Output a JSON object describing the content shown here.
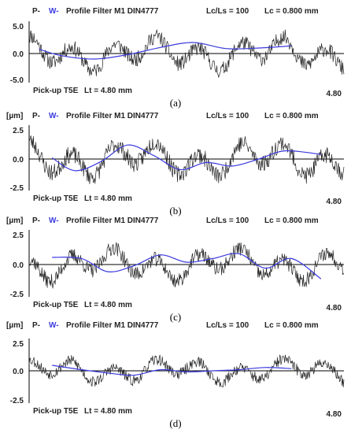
{
  "colors": {
    "profile": "#222222",
    "waviness": "#3a3adf",
    "axis": "#000000"
  },
  "panels": [
    {
      "caption": "(a)",
      "header": {
        "p": "P-",
        "w": "W-",
        "rest": "Profile  Filter  M1  DIN4777",
        "lcls": "Lc/Ls = 100",
        "lc": "Lc =  0.800  mm"
      },
      "pickup": "Pick-up  T5E",
      "lt": "Lt =  4.80  mm",
      "x_end_label": "4.80",
      "unit": "",
      "y_ticks": [
        "5.0",
        "0.0",
        "-5.0"
      ],
      "chart_data": {
        "type": "line",
        "x_range": [
          0,
          4.8
        ],
        "ylim": [
          -5.5,
          5.5
        ],
        "x_unit": "mm",
        "y_unit": "µm",
        "series": [
          {
            "role": "profile",
            "amplitude": 3.6,
            "seed": 11,
            "x_end": 4.8
          },
          {
            "role": "waviness",
            "x_start": 0.15,
            "x_end": 4.0,
            "x": [
              0.15,
              0.5,
              1.0,
              1.5,
              2.0,
              2.5,
              3.0,
              3.5,
              4.0
            ],
            "y": [
              0.8,
              -0.4,
              -1.0,
              -0.2,
              1.1,
              2.0,
              0.9,
              1.0,
              1.4
            ]
          }
        ]
      }
    },
    {
      "caption": "(b)",
      "header": {
        "p": "P-",
        "w": "W-",
        "rest": "Profile  Filter  M1  DIN4777",
        "lcls": "Lc/Ls = 100",
        "lc": "Lc =  0.800  mm"
      },
      "pickup": "Pick-up  T5E",
      "lt": "Lt =  4.80  mm",
      "x_end_label": "4.80",
      "unit": "[µm]",
      "y_ticks": [
        "2.5",
        "0.0",
        "-2.5"
      ],
      "chart_data": {
        "type": "line",
        "x_range": [
          0,
          4.8
        ],
        "ylim": [
          -3.0,
          3.0
        ],
        "x_unit": "mm",
        "y_unit": "µm",
        "series": [
          {
            "role": "profile",
            "amplitude": 1.9,
            "seed": 23,
            "x_end": 4.8
          },
          {
            "role": "waviness",
            "x_start": 0.35,
            "x_end": 4.45,
            "x": [
              0.35,
              0.7,
              1.1,
              1.5,
              1.9,
              2.3,
              2.7,
              3.1,
              3.5,
              3.9,
              4.45
            ],
            "y": [
              0.1,
              -1.0,
              -0.2,
              1.2,
              0.3,
              -0.9,
              -0.3,
              -0.6,
              0.0,
              0.7,
              0.4
            ]
          }
        ]
      }
    },
    {
      "caption": "(c)",
      "header": {
        "p": "P-",
        "w": "W-",
        "rest": "Profile  Filter  M1  DIN4777",
        "lcls": "Lc/Ls = 100",
        "lc": "Lc =  0.800  mm"
      },
      "pickup": "Pick-up  T5E",
      "lt": "Lt =  4.80  mm",
      "x_end_label": "4.80",
      "unit": "[µm]",
      "y_ticks": [
        "2.5",
        "0.0",
        "-2.5"
      ],
      "chart_data": {
        "type": "line",
        "x_range": [
          0,
          4.8
        ],
        "ylim": [
          -3.0,
          3.0
        ],
        "x_unit": "mm",
        "y_unit": "µm",
        "series": [
          {
            "role": "profile",
            "amplitude": 1.6,
            "seed": 37,
            "x_end": 4.8
          },
          {
            "role": "waviness",
            "x_start": 0.35,
            "x_end": 4.45,
            "x": [
              0.35,
              0.8,
              1.2,
              1.6,
              2.0,
              2.4,
              2.8,
              3.2,
              3.6,
              4.0,
              4.45
            ],
            "y": [
              0.6,
              0.5,
              -0.6,
              -0.1,
              0.8,
              0.2,
              0.5,
              0.9,
              -0.3,
              0.5,
              -1.2
            ]
          }
        ]
      }
    },
    {
      "caption": "(d)",
      "header": {
        "p": "P-",
        "w": "W-",
        "rest": "Profile  Filter  M1  DIN4777",
        "lcls": "Lc/Ls = 100",
        "lc": "Lc =  0.800  mm"
      },
      "pickup": "Pick-up  T5E",
      "lt": "Lt =  4.80  mm",
      "x_end_label": "4.80",
      "unit": "[µm]",
      "y_ticks": [
        "2.5",
        "0.0",
        "-2.5"
      ],
      "chart_data": {
        "type": "line",
        "x_range": [
          0,
          4.8
        ],
        "ylim": [
          -3.0,
          3.0
        ],
        "x_unit": "mm",
        "y_unit": "µm",
        "series": [
          {
            "role": "profile",
            "amplitude": 1.3,
            "seed": 53,
            "x_end": 4.8
          },
          {
            "role": "waviness",
            "x_start": 0.35,
            "x_end": 4.0,
            "x": [
              0.35,
              0.8,
              1.2,
              1.6,
              2.0,
              2.4,
              2.8,
              3.2,
              3.6,
              4.0
            ],
            "y": [
              0.5,
              0.1,
              -0.2,
              -0.4,
              0.1,
              -0.1,
              0.0,
              0.1,
              0.3,
              0.2
            ]
          }
        ]
      }
    }
  ]
}
